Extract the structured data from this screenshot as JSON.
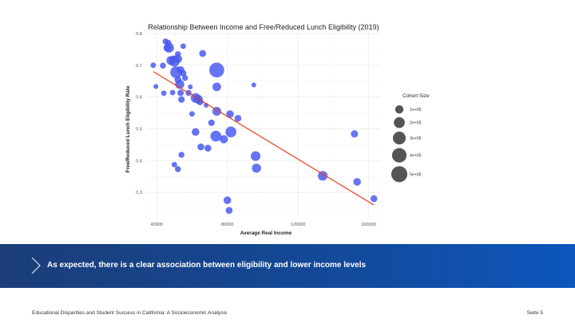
{
  "slide": {
    "banner_text": "As expected, there is a clear association between eligibility and lower income levels",
    "footer_left": "Educational Disparities and Student Success in California: A Socioeconomic Analysis",
    "footer_right": "Seite 5",
    "colors": {
      "banner_start": "#1b3d78",
      "banner_end": "#0d56bd",
      "point": "#4b5cf0",
      "trend_line": "#ee3b1c",
      "legend_point": "#555555"
    },
    "icons": {
      "banner": "chevron-right-icon"
    }
  },
  "chart_data": {
    "type": "scatter",
    "title": "Relationship Between Income and Free/Reduced Lunch Eligibility (2019)",
    "xlabel": "Average Real Income",
    "ylabel": "Free/Reduced Lunch Eligibility Rate",
    "xlim": [
      34000,
      167000
    ],
    "ylim": [
      0.22,
      0.8
    ],
    "xticks": [
      40000,
      80000,
      120000,
      160000
    ],
    "xtick_labels": [
      "40000",
      "80000",
      "120000",
      "160000"
    ],
    "yticks": [
      0.3,
      0.4,
      0.5,
      0.6,
      0.7,
      0.8
    ],
    "ytick_labels": [
      "0.3",
      "0.4",
      "0.5",
      "0.6",
      "0.7",
      "0.8"
    ],
    "grid": true,
    "trend_line": {
      "x": [
        38000,
        163000
      ],
      "y": [
        0.68,
        0.26
      ]
    },
    "size_legend": {
      "title": "Cohort Size",
      "entries": [
        {
          "label": "1e+05",
          "value": 100000
        },
        {
          "label": "2e+05",
          "value": 200000
        },
        {
          "label": "3e+05",
          "value": 300000
        },
        {
          "label": "4e+05",
          "value": 400000
        },
        {
          "label": "5e+05",
          "value": 500000
        }
      ]
    },
    "points": [
      {
        "x": 45000,
        "y": 0.775,
        "size": 40000
      },
      {
        "x": 46500,
        "y": 0.77,
        "size": 50000
      },
      {
        "x": 47000,
        "y": 0.755,
        "size": 150000
      },
      {
        "x": 46000,
        "y": 0.755,
        "size": 80000
      },
      {
        "x": 55000,
        "y": 0.76,
        "size": 30000
      },
      {
        "x": 66000,
        "y": 0.737,
        "size": 60000
      },
      {
        "x": 52000,
        "y": 0.735,
        "size": 40000
      },
      {
        "x": 48000,
        "y": 0.715,
        "size": 120000
      },
      {
        "x": 50000,
        "y": 0.712,
        "size": 180000
      },
      {
        "x": 52000,
        "y": 0.72,
        "size": 100000
      },
      {
        "x": 49500,
        "y": 0.72,
        "size": 60000
      },
      {
        "x": 43500,
        "y": 0.699,
        "size": 40000
      },
      {
        "x": 38000,
        "y": 0.7,
        "size": 30000
      },
      {
        "x": 51000,
        "y": 0.678,
        "size": 240000
      },
      {
        "x": 53500,
        "y": 0.685,
        "size": 80000
      },
      {
        "x": 55000,
        "y": 0.675,
        "size": 50000
      },
      {
        "x": 74000,
        "y": 0.685,
        "size": 420000
      },
      {
        "x": 52000,
        "y": 0.655,
        "size": 60000
      },
      {
        "x": 56000,
        "y": 0.66,
        "size": 40000
      },
      {
        "x": 39500,
        "y": 0.633,
        "size": 20000
      },
      {
        "x": 53000,
        "y": 0.64,
        "size": 130000
      },
      {
        "x": 59000,
        "y": 0.632,
        "size": 20000
      },
      {
        "x": 74000,
        "y": 0.632,
        "size": 110000
      },
      {
        "x": 95000,
        "y": 0.638,
        "size": 20000
      },
      {
        "x": 44000,
        "y": 0.612,
        "size": 30000
      },
      {
        "x": 49000,
        "y": 0.614,
        "size": 30000
      },
      {
        "x": 53500,
        "y": 0.613,
        "size": 50000
      },
      {
        "x": 58000,
        "y": 0.613,
        "size": 40000
      },
      {
        "x": 54000,
        "y": 0.592,
        "size": 50000
      },
      {
        "x": 62000,
        "y": 0.597,
        "size": 150000
      },
      {
        "x": 63500,
        "y": 0.593,
        "size": 120000
      },
      {
        "x": 64500,
        "y": 0.585,
        "size": 60000
      },
      {
        "x": 68000,
        "y": 0.574,
        "size": 20000
      },
      {
        "x": 60000,
        "y": 0.547,
        "size": 30000
      },
      {
        "x": 74000,
        "y": 0.555,
        "size": 120000
      },
      {
        "x": 81500,
        "y": 0.546,
        "size": 80000
      },
      {
        "x": 86000,
        "y": 0.533,
        "size": 60000
      },
      {
        "x": 71000,
        "y": 0.519,
        "size": 50000
      },
      {
        "x": 62000,
        "y": 0.49,
        "size": 80000
      },
      {
        "x": 82000,
        "y": 0.49,
        "size": 200000
      },
      {
        "x": 73500,
        "y": 0.477,
        "size": 200000
      },
      {
        "x": 78000,
        "y": 0.467,
        "size": 100000
      },
      {
        "x": 152000,
        "y": 0.484,
        "size": 70000
      },
      {
        "x": 65000,
        "y": 0.443,
        "size": 60000
      },
      {
        "x": 69000,
        "y": 0.439,
        "size": 60000
      },
      {
        "x": 54000,
        "y": 0.418,
        "size": 40000
      },
      {
        "x": 96000,
        "y": 0.414,
        "size": 150000
      },
      {
        "x": 50000,
        "y": 0.387,
        "size": 30000
      },
      {
        "x": 52000,
        "y": 0.373,
        "size": 40000
      },
      {
        "x": 96500,
        "y": 0.376,
        "size": 130000
      },
      {
        "x": 134000,
        "y": 0.352,
        "size": 150000
      },
      {
        "x": 153500,
        "y": 0.333,
        "size": 80000
      },
      {
        "x": 80000,
        "y": 0.275,
        "size": 80000
      },
      {
        "x": 163000,
        "y": 0.28,
        "size": 60000
      },
      {
        "x": 81000,
        "y": 0.243,
        "size": 60000
      }
    ]
  }
}
